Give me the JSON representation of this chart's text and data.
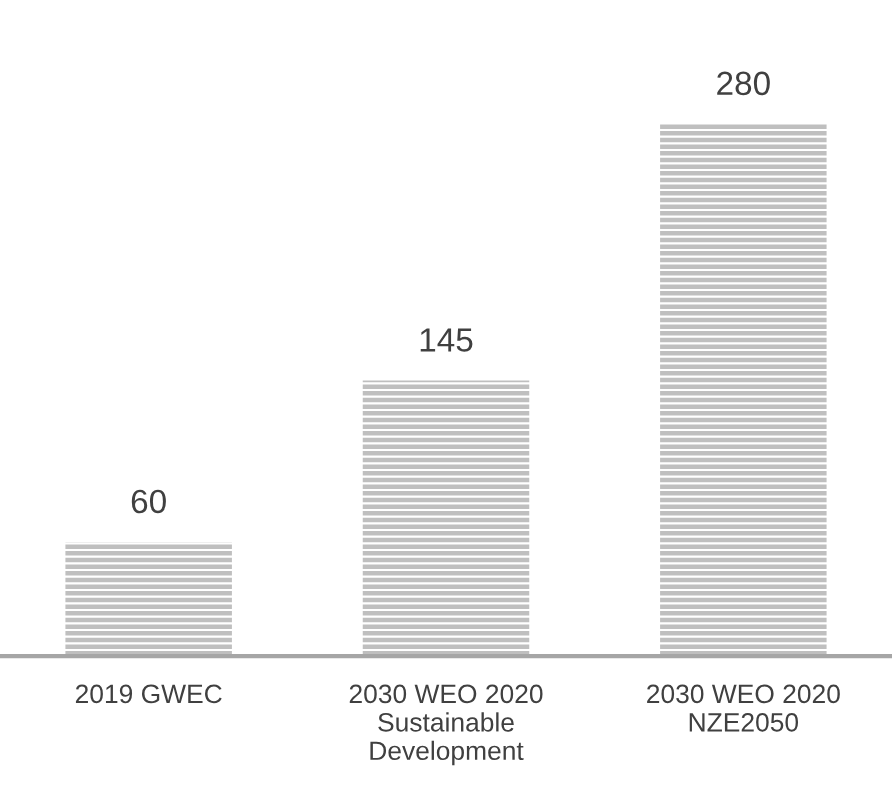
{
  "chart_data": {
    "type": "bar",
    "categories": [
      "2019 GWEC",
      "2030 WEO 2020\nSustainable\nDevelopment",
      "2030 WEO 2020\nNZE2050"
    ],
    "values": [
      60,
      145,
      280
    ],
    "color": "#bfbfbf",
    "data_labels": true
  }
}
